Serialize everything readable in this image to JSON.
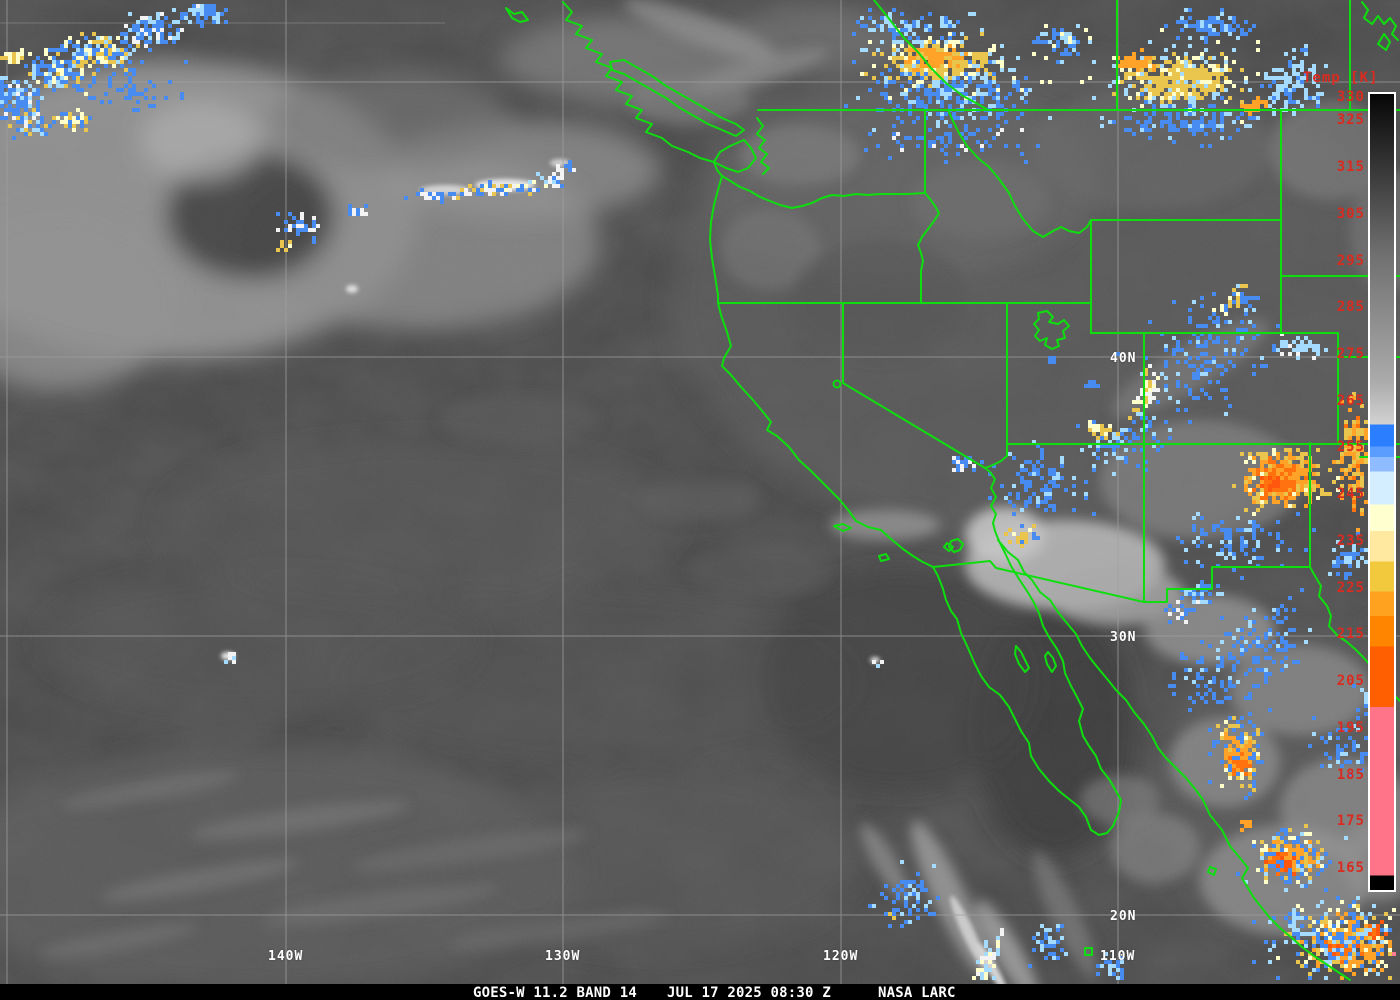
{
  "caption": {
    "product": "GOES-W 11.2 BAND 14",
    "timestamp": "JUL 17 2025 08:30 Z",
    "source": "NASA LARC"
  },
  "colorbar": {
    "title": "Temp [K]",
    "unit": "K",
    "ticks": [
      330,
      325,
      315,
      305,
      295,
      285,
      275,
      265,
      255,
      245,
      235,
      225,
      215,
      205,
      195,
      185,
      175,
      165
    ],
    "stops": [
      [
        0,
        "#060606"
      ],
      [
        20,
        "#6f6f6f"
      ],
      [
        36,
        "#aaaaaa"
      ],
      [
        41.5,
        "#d2d2d2"
      ],
      [
        41.5,
        "#2b7fff"
      ],
      [
        44.3,
        "#2b7fff"
      ],
      [
        44.3,
        "#5b9cff"
      ],
      [
        45.6,
        "#5b9cff"
      ],
      [
        45.6,
        "#8fbcff"
      ],
      [
        47.4,
        "#8fbcff"
      ],
      [
        47.4,
        "#d4edff"
      ],
      [
        51.6,
        "#d4edff"
      ],
      [
        51.6,
        "#ffffcf"
      ],
      [
        54.9,
        "#ffffcf"
      ],
      [
        54.9,
        "#ffe9a0"
      ],
      [
        58.7,
        "#ffe9a0"
      ],
      [
        58.7,
        "#f2c93c"
      ],
      [
        62.5,
        "#f2c93c"
      ],
      [
        62.5,
        "#ffa21f"
      ],
      [
        65.6,
        "#ffa21f"
      ],
      [
        65.6,
        "#ff8400"
      ],
      [
        69.4,
        "#ff8400"
      ],
      [
        69.4,
        "#ff5f00"
      ],
      [
        77.0,
        "#ff5f00"
      ],
      [
        77.0,
        "#ff7488"
      ],
      [
        98.2,
        "#ff7488"
      ],
      [
        98.2,
        "#000000"
      ],
      [
        100,
        "#000000"
      ]
    ]
  },
  "grid": {
    "lat_labels": [
      "40N",
      "30N",
      "20N"
    ],
    "lon_labels": [
      "140W",
      "130W",
      "120W",
      "110W"
    ]
  },
  "colors": {
    "border_green": "#00dc00",
    "gridline_gray": "#9a9a9a",
    "tick_red": "#d92b20",
    "label_white": "#ffffff"
  }
}
